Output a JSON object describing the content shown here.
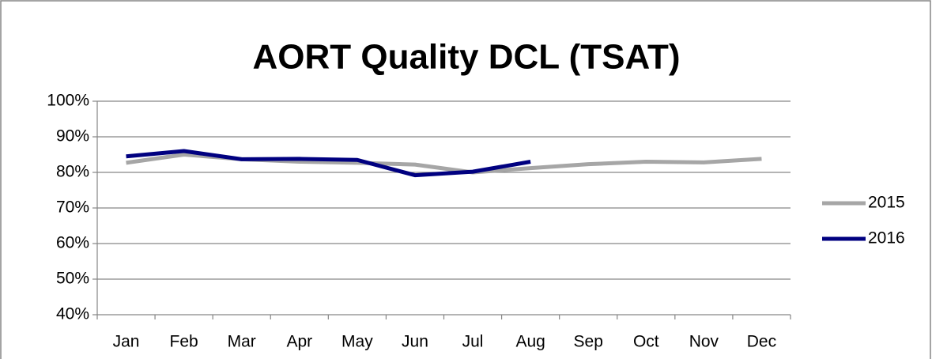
{
  "chart_data": {
    "type": "line",
    "title": "AORT Quality DCL (TSAT)",
    "categories": [
      "Jan",
      "Feb",
      "Mar",
      "Apr",
      "May",
      "Jun",
      "Jul",
      "Aug",
      "Sep",
      "Oct",
      "Nov",
      "Dec"
    ],
    "series": [
      {
        "name": "2015",
        "color": "#a6a6a6",
        "values": [
          82.7,
          85,
          83.7,
          83,
          82.7,
          82.2,
          80,
          81.2,
          82.3,
          83,
          82.8,
          83.8
        ]
      },
      {
        "name": "2016",
        "color": "#000080",
        "values": [
          84.5,
          86,
          83.7,
          83.8,
          83.5,
          79.2,
          80.2,
          83,
          null,
          null,
          null,
          null
        ]
      }
    ],
    "ylim": [
      40,
      100
    ],
    "yticks": [
      {
        "value": 40,
        "label": "40%"
      },
      {
        "value": 50,
        "label": "50%"
      },
      {
        "value": 60,
        "label": "60%"
      },
      {
        "value": 70,
        "label": "70%"
      },
      {
        "value": 80,
        "label": "80%"
      },
      {
        "value": 90,
        "label": "90%"
      },
      {
        "value": 100,
        "label": "100%"
      }
    ],
    "grid": true,
    "legend": "right"
  }
}
